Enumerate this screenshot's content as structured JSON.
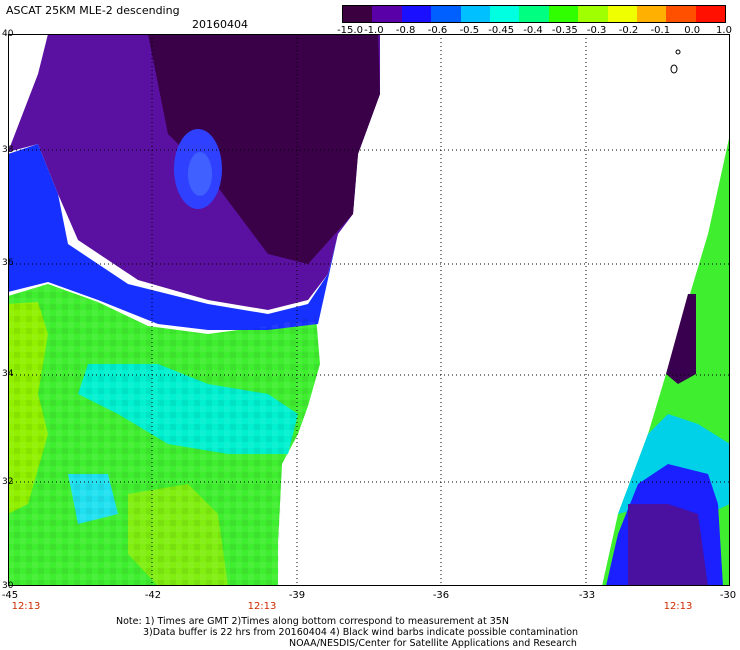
{
  "header": {
    "title": "ASCAT 25KM MLE-2 descending",
    "date": "20160404"
  },
  "colorbar": {
    "ticks": [
      "-15.0",
      "-1.0",
      "-0.8",
      "-0.6",
      "-0.5",
      "-0.45",
      "-0.4",
      "-0.35",
      "-0.3",
      "-0.2",
      "-0.1",
      "0.0",
      "1.0"
    ],
    "colors": [
      "#3a0040",
      "#5a00a8",
      "#1a10ff",
      "#0060ff",
      "#00c0ff",
      "#00ffe0",
      "#00ff80",
      "#30ff00",
      "#a0ff00",
      "#f0ff00",
      "#ffb000",
      "#ff5000",
      "#ff1000"
    ]
  },
  "map": {
    "lat_labels": [
      "40",
      "38",
      "36",
      "34",
      "32",
      "30"
    ],
    "lon_labels": [
      "-45",
      "-42",
      "-39",
      "-36",
      "-33",
      "-30"
    ],
    "pass_times": [
      "12:13",
      "12:13",
      "12:13"
    ]
  },
  "notes": {
    "line1": "Note: 1) Times are GMT 2)Times along bottom correspond to measurement at 35N",
    "line2": "3)Data buffer is 22 hrs from 20160404 4) Black wind barbs indicate possible contamination",
    "line3": "NOAA/NESDIS/Center for Satellite Applications and Research"
  }
}
